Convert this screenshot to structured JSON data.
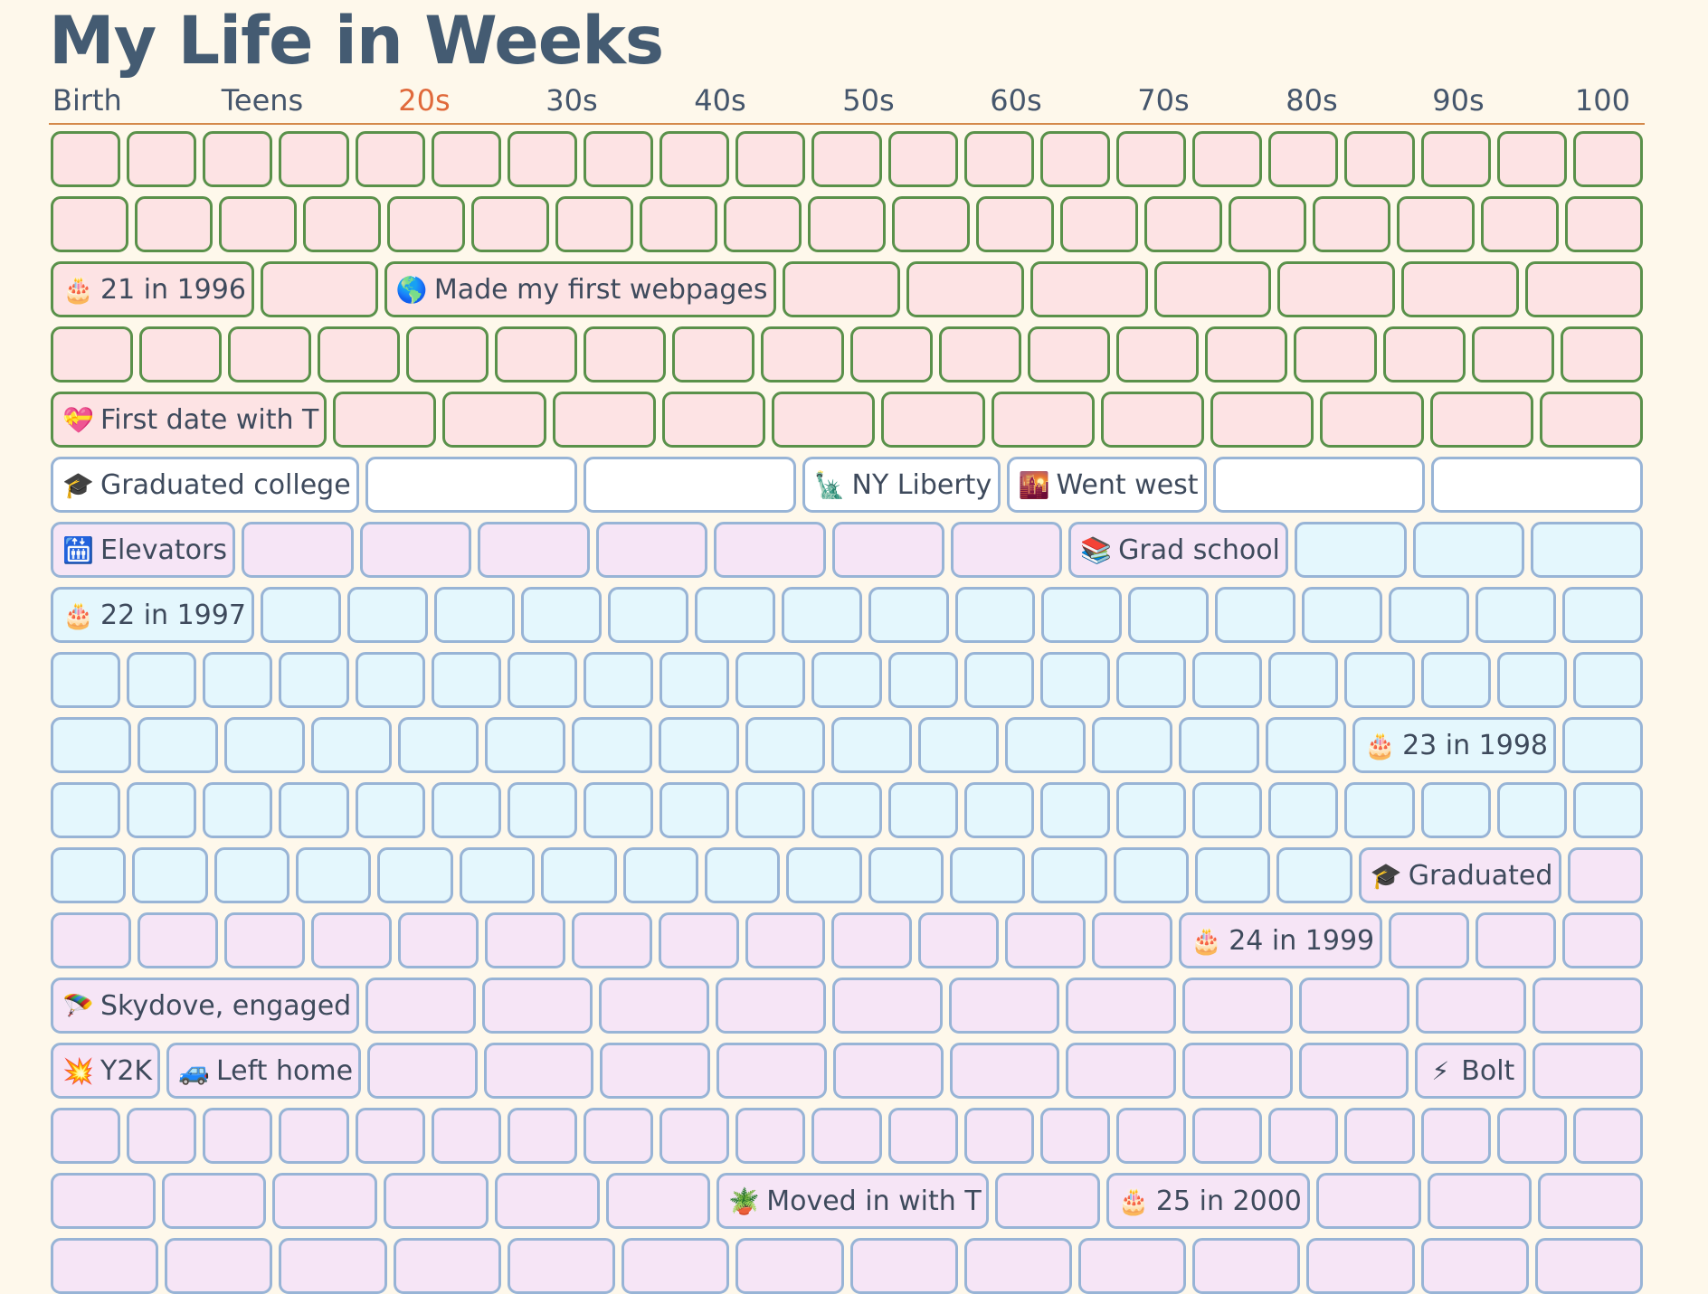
{
  "title": "My Life in Weeks",
  "decades": [
    "Birth",
    "Teens",
    "20s",
    "30s",
    "40s",
    "50s",
    "60s",
    "70s",
    "80s",
    "90s",
    "100"
  ],
  "highlighted_decade": "20s",
  "colors": {
    "background": "#fef8eb",
    "title": "#445b72",
    "decade_accent": "#e0693b",
    "rule": "#d4894a",
    "green_border": "#5a914a",
    "pink_fill": "#fde3e4",
    "blue_border": "#98b4d6",
    "lavender_fill": "#f6e5f6",
    "cyan_fill": "#e4f7fd",
    "white_fill": "#ffffff"
  },
  "rows": [
    [
      {
        "t": "g",
        "n": 21
      }
    ],
    [
      {
        "t": "g",
        "n": 19
      }
    ],
    [
      {
        "t": "g",
        "label": "21 in 1996",
        "icon": "birthday-cake-icon",
        "glyph": "🎂"
      },
      {
        "t": "g",
        "n": 1
      },
      {
        "t": "g",
        "label": "Made my first webpages",
        "icon": "globe-icon",
        "glyph": "🌎"
      },
      {
        "t": "g",
        "n": 7
      }
    ],
    [
      {
        "t": "g",
        "n": 18
      }
    ],
    [
      {
        "t": "g",
        "label": "First date with T",
        "icon": "heart-icon",
        "glyph": "💝"
      },
      {
        "t": "g",
        "n": 12
      }
    ],
    [
      {
        "t": "w",
        "label": "Graduated college",
        "icon": "graduation-cap-icon",
        "glyph": "🎓"
      },
      {
        "t": "w",
        "n": 2
      },
      {
        "t": "w",
        "label": "NY Liberty",
        "icon": "statue-of-liberty-icon",
        "glyph": "🗽"
      },
      {
        "t": "w",
        "label": "Went west",
        "icon": "sunset-icon",
        "glyph": "🌇"
      },
      {
        "t": "w",
        "n": 2
      }
    ],
    [
      {
        "t": "b",
        "label": "Elevators",
        "icon": "elevator-icon",
        "glyph": "🛗",
        "bg": "p"
      },
      {
        "t": "p",
        "n": 7
      },
      {
        "t": "p",
        "label": "Grad school",
        "icon": "books-icon",
        "glyph": "📚"
      },
      {
        "t": "b",
        "n": 3
      }
    ],
    [
      {
        "t": "b",
        "label": "22 in 1997",
        "icon": "birthday-cake-icon",
        "glyph": "🎂"
      },
      {
        "t": "b",
        "n": 16
      }
    ],
    [
      {
        "t": "b",
        "n": 21
      }
    ],
    [
      {
        "t": "b",
        "n": 15
      },
      {
        "t": "b",
        "label": "23 in 1998",
        "icon": "birthday-cake-icon",
        "glyph": "🎂"
      },
      {
        "t": "b",
        "n": 1
      }
    ],
    [
      {
        "t": "b",
        "n": 21
      }
    ],
    [
      {
        "t": "b",
        "n": 16
      },
      {
        "t": "p",
        "label": "Graduated",
        "icon": "graduation-cap-icon",
        "glyph": "🎓"
      },
      {
        "t": "p",
        "n": 1
      }
    ],
    [
      {
        "t": "p",
        "n": 13
      },
      {
        "t": "p",
        "label": "24 in 1999",
        "icon": "birthday-cake-icon",
        "glyph": "🎂"
      },
      {
        "t": "p",
        "n": 3
      }
    ],
    [
      {
        "t": "p",
        "label": "Skydove, engaged",
        "icon": "skydiving-icon",
        "glyph": "🪂"
      },
      {
        "t": "p",
        "n": 11
      }
    ],
    [
      {
        "t": "p",
        "label": "Y2K",
        "icon": "explosion-icon",
        "glyph": "💥"
      },
      {
        "t": "p",
        "label": "Left home",
        "icon": "car-icon",
        "glyph": "🚙"
      },
      {
        "t": "p",
        "n": 9
      },
      {
        "t": "p",
        "label": "Bolt",
        "icon": "lightning-icon",
        "glyph": "⚡"
      },
      {
        "t": "p",
        "n": 1
      }
    ],
    [
      {
        "t": "p",
        "n": 21
      }
    ],
    [
      {
        "t": "p",
        "n": 6
      },
      {
        "t": "p",
        "label": "Moved in with T",
        "icon": "plant-icon",
        "glyph": "🪴"
      },
      {
        "t": "p",
        "n": 1
      },
      {
        "t": "p",
        "label": "25 in 2000",
        "icon": "birthday-cake-icon",
        "glyph": "🎂"
      },
      {
        "t": "p",
        "n": 3
      }
    ],
    [
      {
        "t": "p",
        "n": 14
      }
    ]
  ]
}
